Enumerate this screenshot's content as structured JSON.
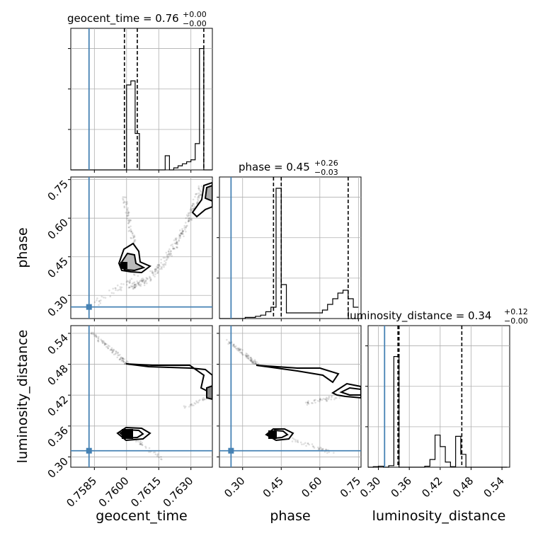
{
  "chart_data": {
    "type": "corner",
    "parameters": [
      "geocent_time",
      "phase",
      "luminosity_distance"
    ],
    "truth": {
      "geocent_time": 0.75825,
      "phase": 0.255,
      "luminosity_distance": 0.312
    },
    "axis_ranges": {
      "geocent_time": [
        0.7574,
        0.764
      ],
      "phase": [
        0.21,
        0.76
      ],
      "luminosity_distance": [
        0.28,
        0.555
      ]
    },
    "ticks": {
      "geocent_time": [
        "0.7585",
        "0.7600",
        "0.7615",
        "0.7630"
      ],
      "phase": [
        "0.30",
        "0.45",
        "0.60",
        "0.75"
      ],
      "luminosity_distance": [
        "0.30",
        "0.36",
        "0.42",
        "0.48",
        "0.54"
      ]
    },
    "tick_values": {
      "geocent_time": [
        0.7585,
        0.76,
        0.7615,
        0.763
      ],
      "phase": [
        0.3,
        0.45,
        0.6,
        0.75
      ],
      "luminosity_distance": [
        0.3,
        0.36,
        0.42,
        0.48,
        0.54
      ]
    },
    "titles": [
      {
        "param": "geocent_time",
        "main": "geocent_time = 0.76",
        "sup": "+0.00",
        "sub": "−0.00"
      },
      {
        "param": "phase",
        "main": "phase = 0.45",
        "sup": "+0.26",
        "sub": "−0.03"
      },
      {
        "param": "luminosity_distance",
        "main": "luminosity_distance = 0.34",
        "sup": "+0.12",
        "sub": "−0.00"
      }
    ],
    "quantiles": {
      "geocent_time": [
        0.7599,
        0.7605,
        0.7636
      ],
      "phase": [
        0.42,
        0.45,
        0.71
      ],
      "luminosity_distance": [
        0.338,
        0.34,
        0.462
      ]
    },
    "hist1d": {
      "geocent_time": {
        "edges": [
          0.7574,
          0.7576,
          0.7578,
          0.758,
          0.7582,
          0.7584,
          0.7586,
          0.7588,
          0.759,
          0.7592,
          0.7594,
          0.7596,
          0.7598,
          0.76,
          0.7602,
          0.7604,
          0.7606,
          0.7608,
          0.761,
          0.7612,
          0.7614,
          0.7616,
          0.7618,
          0.762,
          0.7622,
          0.7624,
          0.7626,
          0.7628,
          0.763,
          0.7632,
          0.7634,
          0.7636,
          0.7638,
          0.764
        ],
        "counts": [
          0,
          0,
          0,
          0,
          0,
          0,
          0,
          0,
          0,
          0,
          0,
          0,
          0,
          2.1,
          2.2,
          0.9,
          0,
          0,
          0,
          0,
          0,
          0,
          0.35,
          0,
          0.05,
          0.1,
          0.15,
          0.2,
          0.25,
          0.65,
          3.0,
          0,
          0
        ],
        "ymax": 3.5
      },
      "phase": {
        "edges": [
          0.21,
          0.23,
          0.25,
          0.27,
          0.29,
          0.31,
          0.33,
          0.35,
          0.37,
          0.39,
          0.41,
          0.43,
          0.45,
          0.47,
          0.49,
          0.51,
          0.53,
          0.55,
          0.57,
          0.59,
          0.61,
          0.63,
          0.65,
          0.67,
          0.69,
          0.71,
          0.73,
          0.75
        ],
        "counts": [
          0,
          0,
          0,
          0,
          0,
          0.02,
          0.02,
          0.04,
          0.06,
          0.12,
          0.2,
          2.3,
          0.6,
          0.1,
          0.1,
          0.1,
          0.1,
          0.1,
          0.1,
          0.1,
          0.15,
          0.25,
          0.35,
          0.45,
          0.5,
          0.35,
          0.2
        ],
        "ymax": 2.5
      },
      "luminosity_distance": {
        "edges": [
          0.28,
          0.29,
          0.3,
          0.31,
          0.32,
          0.33,
          0.34,
          0.35,
          0.36,
          0.37,
          0.38,
          0.39,
          0.4,
          0.41,
          0.42,
          0.43,
          0.44,
          0.45,
          0.46,
          0.47,
          0.48,
          0.49,
          0.5,
          0.51,
          0.52,
          0.53,
          0.54,
          0.55
        ],
        "counts": [
          0,
          0.02,
          0.04,
          0,
          0.06,
          4.3,
          0,
          0,
          0,
          0,
          0,
          0.04,
          0.3,
          1.25,
          0.8,
          0.2,
          0.02,
          1.2,
          0.5,
          0,
          0,
          0,
          0,
          0,
          0,
          0,
          0
        ],
        "ymax": 5.5
      }
    },
    "grid": true,
    "truth_color": "#4682b4"
  }
}
